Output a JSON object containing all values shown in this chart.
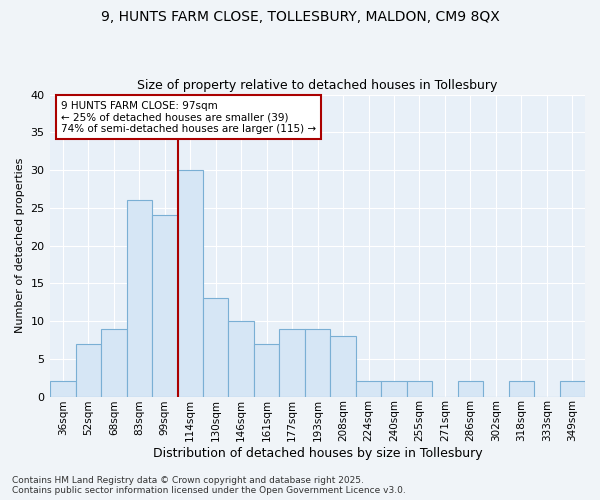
{
  "title_line1": "9, HUNTS FARM CLOSE, TOLLESBURY, MALDON, CM9 8QX",
  "title_line2": "Size of property relative to detached houses in Tollesbury",
  "xlabel": "Distribution of detached houses by size in Tollesbury",
  "ylabel": "Number of detached properties",
  "categories": [
    "36sqm",
    "52sqm",
    "68sqm",
    "83sqm",
    "99sqm",
    "114sqm",
    "130sqm",
    "146sqm",
    "161sqm",
    "177sqm",
    "193sqm",
    "208sqm",
    "224sqm",
    "240sqm",
    "255sqm",
    "271sqm",
    "286sqm",
    "302sqm",
    "318sqm",
    "333sqm",
    "349sqm"
  ],
  "values": [
    2,
    7,
    9,
    26,
    24,
    30,
    13,
    10,
    7,
    9,
    9,
    8,
    2,
    2,
    2,
    0,
    2,
    0,
    2,
    0,
    2
  ],
  "bar_color": "#d6e6f5",
  "bar_edge_color": "#7aafd4",
  "bar_linewidth": 0.8,
  "vline_x": 4.5,
  "vline_color": "#aa0000",
  "ylim": [
    0,
    40
  ],
  "yticks": [
    0,
    5,
    10,
    15,
    20,
    25,
    30,
    35,
    40
  ],
  "annotation_line1": "9 HUNTS FARM CLOSE: 97sqm",
  "annotation_line2": "← 25% of detached houses are smaller (39)",
  "annotation_line3": "74% of semi-detached houses are larger (115) →",
  "annotation_box_color": "#ffffff",
  "annotation_border_color": "#aa0000",
  "footnote_line1": "Contains HM Land Registry data © Crown copyright and database right 2025.",
  "footnote_line2": "Contains public sector information licensed under the Open Government Licence v3.0.",
  "bg_color": "#f0f4f8",
  "plot_bg_color": "#e8f0f8",
  "grid_color": "#ffffff",
  "title1_fontsize": 10,
  "title2_fontsize": 9
}
